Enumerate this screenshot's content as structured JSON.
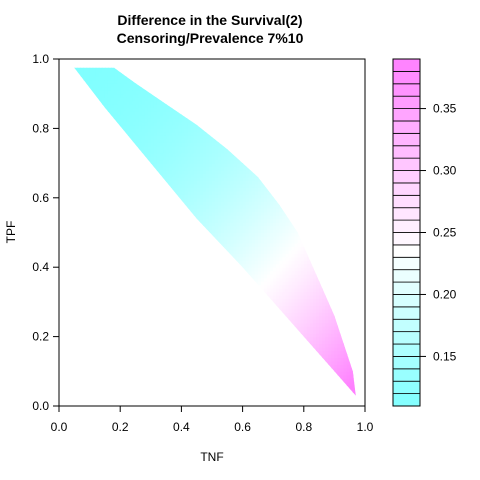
{
  "chart_data": {
    "type": "heatmap",
    "title": "Difference in the Survival(2)",
    "subtitle": "Censoring/Prevalence 7%10",
    "xlabel": "TNF",
    "ylabel": "TPF",
    "xlim": [
      0,
      1
    ],
    "ylim": [
      0,
      1
    ],
    "x_ticks": [
      "0.0",
      "0.2",
      "0.4",
      "0.6",
      "0.8",
      "1.0"
    ],
    "y_ticks": [
      "0.0",
      "0.2",
      "0.4",
      "0.6",
      "0.8",
      "1.0"
    ],
    "color_low": "#80ffff",
    "color_mid": "#ffffff",
    "color_high": "#ff80ff",
    "colorbar": {
      "min": 0.11,
      "max": 0.39,
      "mid": 0.235,
      "levels": 28,
      "ticks": [
        "0.15",
        "0.20",
        "0.25",
        "0.30",
        "0.35"
      ],
      "tick_values": [
        0.15,
        0.2,
        0.25,
        0.3,
        0.35
      ]
    },
    "region": {
      "upper_boundary": [
        [
          0.05,
          0.975
        ],
        [
          0.18,
          0.975
        ],
        [
          0.25,
          0.93
        ],
        [
          0.35,
          0.87
        ],
        [
          0.45,
          0.81
        ],
        [
          0.55,
          0.74
        ],
        [
          0.65,
          0.66
        ],
        [
          0.72,
          0.58
        ],
        [
          0.78,
          0.5
        ],
        [
          0.82,
          0.42
        ],
        [
          0.86,
          0.34
        ],
        [
          0.9,
          0.26
        ],
        [
          0.93,
          0.18
        ],
        [
          0.96,
          0.1
        ],
        [
          0.97,
          0.03
        ]
      ],
      "lower_boundary": [
        [
          0.05,
          0.975
        ],
        [
          0.15,
          0.86
        ],
        [
          0.3,
          0.7
        ],
        [
          0.45,
          0.54
        ],
        [
          0.6,
          0.4
        ],
        [
          0.72,
          0.28
        ],
        [
          0.82,
          0.18
        ],
        [
          0.9,
          0.1
        ],
        [
          0.97,
          0.03
        ]
      ],
      "value_top_left": 0.11,
      "value_bottom_right": 0.39
    }
  }
}
